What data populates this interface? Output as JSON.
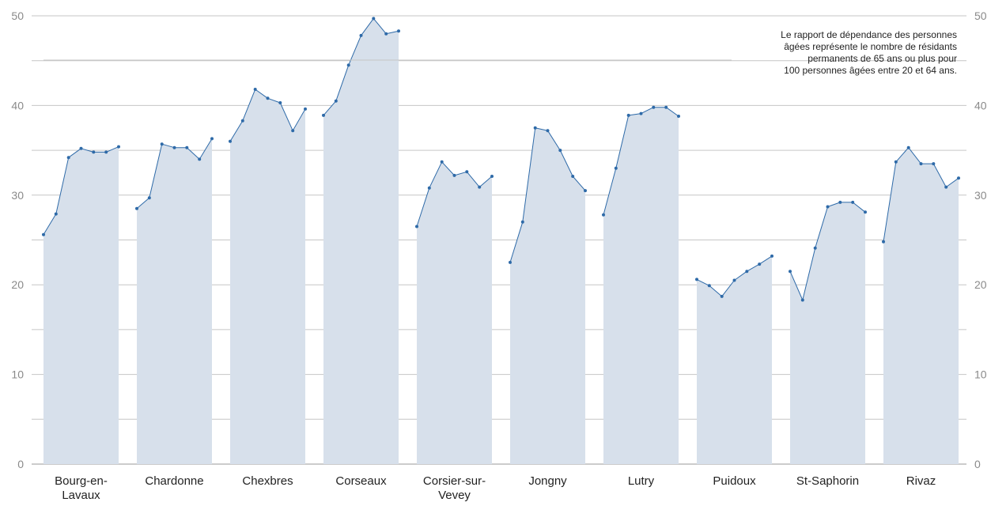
{
  "chart_data": {
    "type": "area",
    "note": [
      "Le rapport de dépendance des personnes",
      "âgées représente le nombre de résidants",
      "permanents de 65 ans ou plus pour",
      "100 personnes âgées entre 20 et 64 ans."
    ],
    "ylim": [
      0,
      50
    ],
    "yticks": [
      0,
      10,
      20,
      30,
      40,
      50
    ],
    "grid": true,
    "colors": {
      "area": "#d7e0eb",
      "line": "#2e6aa8",
      "grid": "#c6c6c6",
      "axis": "#9a9a9a"
    },
    "groups": [
      {
        "label": [
          "Bourg-en-",
          "Lavaux"
        ],
        "values": [
          25.6,
          27.9,
          34.2,
          35.2,
          34.8,
          34.8,
          35.4
        ]
      },
      {
        "label": [
          "Chardonne"
        ],
        "values": [
          28.5,
          29.7,
          35.7,
          35.3,
          35.3,
          34.0,
          36.3
        ]
      },
      {
        "label": [
          "Chexbres"
        ],
        "values": [
          36.0,
          38.3,
          41.8,
          40.8,
          40.3,
          37.2,
          39.6
        ]
      },
      {
        "label": [
          "Corseaux"
        ],
        "values": [
          38.9,
          40.5,
          44.5,
          47.8,
          49.7,
          48.0,
          48.3
        ]
      },
      {
        "label": [
          "Corsier-sur-",
          "Vevey"
        ],
        "values": [
          26.5,
          30.8,
          33.7,
          32.2,
          32.6,
          30.9,
          32.1
        ]
      },
      {
        "label": [
          "Jongny"
        ],
        "values": [
          22.5,
          27.0,
          37.5,
          37.2,
          35.0,
          32.1,
          30.5
        ]
      },
      {
        "label": [
          "Lutry"
        ],
        "values": [
          27.8,
          33.0,
          38.9,
          39.1,
          39.8,
          39.8,
          38.8
        ]
      },
      {
        "label": [
          "Puidoux"
        ],
        "values": [
          20.6,
          19.9,
          18.7,
          20.5,
          21.5,
          22.3,
          23.2
        ]
      },
      {
        "label": [
          "St-Saphorin"
        ],
        "values": [
          21.5,
          18.3,
          24.1,
          28.7,
          29.2,
          29.2,
          28.1
        ]
      },
      {
        "label": [
          "Rivaz"
        ],
        "values": [
          24.8,
          33.7,
          35.3,
          33.5,
          33.5,
          30.9,
          31.9
        ]
      }
    ]
  }
}
